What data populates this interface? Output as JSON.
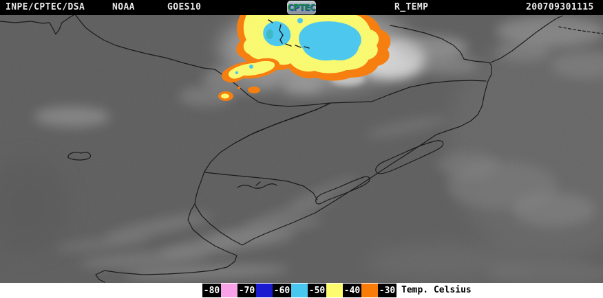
{
  "header": {
    "institution": "INPE/CPTEC/DSA",
    "agency": "NOAA",
    "satellite": "GOES10",
    "logo_text": "CPTEC",
    "product": "R_TEMP",
    "timestamp": "200709301115"
  },
  "colors": {
    "header_bg": "#000000",
    "header_fg": "#e8e8e8",
    "map_base": "#5d5d5d",
    "border_line": "#101010",
    "temp_m80_m70": "#f8a2e8",
    "temp_m70_m60": "#1a1ad0",
    "temp_m60_m50": "#48c8f0",
    "temp_m50_m40": "#fcfc6e",
    "temp_m40_m30": "#f97c08"
  },
  "legend": {
    "title": "Temp. Celsius",
    "tick_labels": [
      "-80",
      "-70",
      "-60",
      "-50",
      "-40",
      "-30"
    ],
    "swatch_colors": [
      "#f8a2e8",
      "#1a1ad0",
      "#48c8f0",
      "#fcfc6e",
      "#f97c08"
    ]
  },
  "map": {
    "description": "GOES-10 infrared satellite image of southern Brazil, Uruguay and Rio de la Plata with enhanced cold cloud tops"
  }
}
